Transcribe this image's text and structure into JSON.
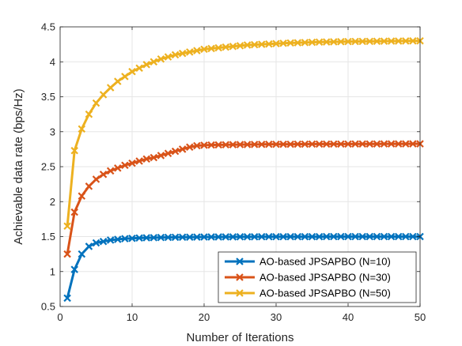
{
  "chart_data": {
    "type": "line",
    "title": "",
    "xlabel": "Number of Iterations",
    "ylabel": "Achievable data rate (bps/Hz)",
    "xlim": [
      0,
      50
    ],
    "ylim": [
      0.5,
      4.5
    ],
    "xticks": [
      0,
      10,
      20,
      30,
      40,
      50
    ],
    "yticks": [
      0.5,
      1,
      1.5,
      2,
      2.5,
      3,
      3.5,
      4,
      4.5
    ],
    "xtick_labels": [
      "0",
      "10",
      "20",
      "30",
      "40",
      "50"
    ],
    "ytick_labels": [
      "0.5",
      "1",
      "1.5",
      "2",
      "2.5",
      "3",
      "3.5",
      "4",
      "4.5"
    ],
    "grid": true,
    "legend_position": "bottom-right",
    "marker": "x",
    "x": [
      1,
      2,
      3,
      4,
      5,
      6,
      7,
      8,
      9,
      10,
      11,
      12,
      13,
      14,
      15,
      16,
      17,
      18,
      19,
      20,
      21,
      22,
      23,
      24,
      25,
      26,
      27,
      28,
      29,
      30,
      31,
      32,
      33,
      34,
      35,
      36,
      37,
      38,
      39,
      40,
      41,
      42,
      43,
      44,
      45,
      46,
      47,
      48,
      49,
      50
    ],
    "series": [
      {
        "name": "AO-based JPSAPBO (N=10)",
        "color": "#0072BD",
        "values": [
          0.62,
          1.03,
          1.25,
          1.36,
          1.41,
          1.43,
          1.45,
          1.46,
          1.47,
          1.475,
          1.48,
          1.483,
          1.485,
          1.487,
          1.489,
          1.49,
          1.491,
          1.492,
          1.493,
          1.494,
          1.495,
          1.495,
          1.496,
          1.496,
          1.497,
          1.497,
          1.497,
          1.498,
          1.498,
          1.498,
          1.498,
          1.499,
          1.499,
          1.499,
          1.499,
          1.499,
          1.5,
          1.5,
          1.5,
          1.5,
          1.5,
          1.5,
          1.5,
          1.5,
          1.5,
          1.5,
          1.5,
          1.5,
          1.5,
          1.5
        ]
      },
      {
        "name": "AO-based JPSAPBO (N=30)",
        "color": "#D95319",
        "values": [
          1.25,
          1.85,
          2.08,
          2.22,
          2.32,
          2.39,
          2.44,
          2.48,
          2.52,
          2.55,
          2.58,
          2.61,
          2.63,
          2.66,
          2.69,
          2.72,
          2.75,
          2.78,
          2.8,
          2.807,
          2.81,
          2.812,
          2.814,
          2.815,
          2.816,
          2.817,
          2.818,
          2.819,
          2.82,
          2.82,
          2.821,
          2.821,
          2.822,
          2.822,
          2.823,
          2.823,
          2.823,
          2.824,
          2.824,
          2.824,
          2.825,
          2.825,
          2.825,
          2.825,
          2.826,
          2.826,
          2.826,
          2.826,
          2.827,
          2.827
        ]
      },
      {
        "name": "AO-based JPSAPBO (N=50)",
        "color": "#EDB120",
        "values": [
          1.65,
          2.73,
          3.04,
          3.25,
          3.41,
          3.53,
          3.63,
          3.72,
          3.79,
          3.86,
          3.91,
          3.96,
          4.0,
          4.04,
          4.07,
          4.1,
          4.12,
          4.14,
          4.16,
          4.18,
          4.19,
          4.2,
          4.21,
          4.22,
          4.23,
          4.24,
          4.245,
          4.25,
          4.255,
          4.26,
          4.265,
          4.27,
          4.273,
          4.276,
          4.279,
          4.282,
          4.284,
          4.286,
          4.288,
          4.29,
          4.291,
          4.292,
          4.293,
          4.294,
          4.295,
          4.296,
          4.297,
          4.298,
          4.299,
          4.3
        ]
      }
    ]
  }
}
